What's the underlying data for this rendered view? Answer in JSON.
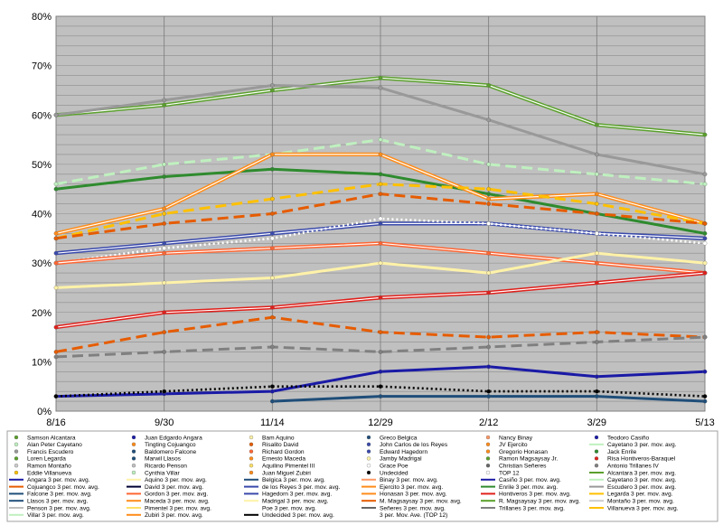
{
  "chart_data": {
    "type": "line",
    "title": "",
    "xlabel": "",
    "ylabel": "",
    "x_ticks": [
      "8/16",
      "9/30",
      "11/14",
      "12/29",
      "2/12",
      "3/29",
      "5/13"
    ],
    "y_ticks": [
      "0%",
      "10%",
      "20%",
      "30%",
      "40%",
      "50%",
      "60%",
      "70%",
      "80%"
    ],
    "ylim": [
      0,
      80
    ],
    "grid": "on",
    "legend_position": "bottom",
    "x_points": [
      "8/16",
      "9/30",
      "11/14",
      "12/29",
      "2/12",
      "3/29",
      "5/13"
    ],
    "series": [
      {
        "name": "Alcantara 3 per. mov. avg.",
        "color": "#5aa02c",
        "style": "double",
        "values": [
          60,
          62,
          65,
          67.5,
          66,
          58,
          56
        ]
      },
      {
        "name": "Escudero 3 per. mov. avg.",
        "color": "#999999",
        "style": "solid",
        "values": [
          60,
          63,
          66,
          65.5,
          59,
          52,
          48
        ]
      },
      {
        "name": "Villar 3 per. mov. avg.",
        "color": "#bff0bf",
        "style": "dashed",
        "values": [
          46,
          50,
          52,
          55,
          50,
          48,
          46
        ]
      },
      {
        "name": "Enrile 3 per. mov. avg.",
        "color": "#2e8b2e",
        "style": "solid",
        "values": [
          45,
          47.5,
          49,
          48,
          44,
          40,
          36
        ]
      },
      {
        "name": "Zubiri 3 per. mov. avg.",
        "color": "#ff8c1a",
        "style": "double",
        "values": [
          36,
          41,
          52,
          52,
          43,
          44,
          38
        ]
      },
      {
        "name": "Legarda 3 per. mov. avg.",
        "color": "#ffc000",
        "style": "dashed",
        "values": [
          35,
          40,
          43,
          46,
          45,
          42,
          38
        ]
      },
      {
        "name": "de los Reyes 3 per. mov. avg.",
        "color": "#3949ab",
        "style": "double",
        "values": [
          32,
          34,
          36,
          38,
          38,
          36,
          35
        ]
      },
      {
        "name": "Cojuangco 3 per. mov. avg.",
        "color": "#e65c00",
        "style": "dashed",
        "values": [
          35,
          38,
          40,
          44,
          42,
          40,
          38
        ]
      },
      {
        "name": "Poe 3 per. mov. avg.",
        "color": "#ffffff",
        "style": "dotted",
        "values": [
          30,
          33,
          35,
          39,
          38,
          36,
          34
        ]
      },
      {
        "name": "Gordon 3 per. mov. avg.",
        "color": "#ff6633",
        "style": "double",
        "values": [
          30,
          32,
          33,
          34,
          32,
          30,
          28
        ]
      },
      {
        "name": "Madrigal 3 per. mov. avg.",
        "color": "#fff2a8",
        "style": "solid",
        "values": [
          25,
          26,
          27,
          30,
          28,
          32,
          30
        ]
      },
      {
        "name": "Hontiveros 3 per. mov. avg.",
        "color": "#e0201b",
        "style": "double",
        "values": [
          17,
          20,
          21,
          23,
          24,
          26,
          28
        ]
      },
      {
        "name": "Magsaysay 3 per. mov. avg.",
        "color": "#e65c00",
        "style": "dashed",
        "values": [
          12,
          16,
          19,
          16,
          15,
          16,
          15
        ]
      },
      {
        "name": "Trillanes 3 per. mov. avg.",
        "color": "#808080",
        "style": "dashed",
        "values": [
          11,
          12,
          13,
          12,
          13,
          14,
          15
        ]
      },
      {
        "name": "Casiño 3 per. mov. avg.",
        "color": "#1a1aa6",
        "style": "solid",
        "values": [
          3,
          3.5,
          4,
          8,
          9,
          7,
          8
        ]
      },
      {
        "name": "Undecided 3 per. mov. avg.",
        "color": "#000000",
        "style": "dotted",
        "values": [
          3,
          4,
          5,
          5,
          4,
          4,
          3
        ]
      },
      {
        "name": "Llasos 3 per. mov. avg.",
        "color": "#1f4e79",
        "style": "solid",
        "values": [
          null,
          null,
          2,
          3,
          3,
          3,
          2
        ]
      }
    ],
    "legend_entries": [
      [
        "Samson Alcantara",
        "Juan Edgardo Angara",
        "Bam Aquino",
        "Greco Belgica",
        "Nancy Binay",
        "Teodoro Casiño"
      ],
      [
        "Alan Peter Cayetano",
        "Tingting Cojuangco",
        "Risalito David",
        "John Carlos de los Reyes",
        "JV Ejercito",
        "Cayetano 3 per. mov. avg."
      ],
      [
        "Francis Escudero",
        "Baldomero Falcone",
        "Richard Gordon",
        "Edward Hagedorn",
        "Gregorio Honasan",
        "Jack Enrile"
      ],
      [
        "Loren Legarda",
        "Marwil Llasos",
        "Ernesto Maceda",
        "Jamby Madrigal",
        "Ramon Magsaysay Jr.",
        "Risa Hontiveros-Baraquel"
      ],
      [
        "Ramon Montaño",
        "Ricardo Penson",
        "Aquilino Pimentel III",
        "Grace Poe",
        "Christian Señeres",
        "Antonio Trillanes IV"
      ],
      [
        "Eddie Villanueva",
        "Cynthia Villar",
        "Juan Miguel Zubiri",
        "Undecided",
        "TOP 12",
        "Alcantara 3 per. mov. avg."
      ],
      [
        "Angara 3 per. mov. avg.",
        "Aquino 3 per. mov. avg.",
        "Belgica 3 per. mov. avg.",
        "Binay 3 per. mov. avg.",
        "Casiño 3 per. mov. avg.",
        "Cayetano 3 per. mov. avg."
      ],
      [
        "Cojuangco 3 per. mov. avg.",
        "David 3 per. mov. avg.",
        "de los Reyes 3 per. mov. avg.",
        "Ejercito 3 per. mov. avg.",
        "Enrile 3 per. mov. avg.",
        "Escudero 3 per. mov. avg."
      ],
      [
        "Falcone 3 per. mov. avg.",
        "Gordon 3 per. mov. avg.",
        "Hagedorn 3 per. mov. avg.",
        "Honasan 3 per. mov. avg.",
        "Hontiveros 3 per. mov. avg.",
        "Legarda 3 per. mov. avg."
      ],
      [
        "Llasos 3 per. mov. avg.",
        "Maceda 3 per. mov. avg.",
        "Madrigal 3 per. mov. avg.",
        "M. Magsaysay 3 per. mov. avg.",
        "R. Magsaysay 3 per. mov. avg.",
        "Montaño 3 per. mov. avg."
      ],
      [
        "Penson 3 per. mov. avg.",
        "Pimentel 3 per. mov. avg.",
        "Poe 3 per. mov. avg.",
        "Señeres 3 per. mov. avg.",
        "Trillanes 3 per. mov. avg.",
        "Villanueva 3 per. mov. avg."
      ],
      [
        "Villar 3 per. mov. avg.",
        "Zubiri 3 per. mov. avg.",
        "Undecided 3 per. mov. avg.",
        "3 per. Mov. Ave. (TOP 12)",
        "",
        ""
      ]
    ],
    "legend_colors": [
      [
        "#5aa02c",
        "#1a1aa6",
        "#fff2a8",
        "#1f4e79",
        "#ff9966",
        "#1a1aa6"
      ],
      [
        "#bff0bf",
        "#ff8c1a",
        "#e65c00",
        "#3949ab",
        "#ff8c1a",
        "#bff0bf"
      ],
      [
        "#999999",
        "#1f4e79",
        "#ff6633",
        "#3949ab",
        "#ff8c1a",
        "#2e8b2e"
      ],
      [
        "#5aa02c",
        "#1f4e79",
        "#ff8c1a",
        "#fff2a8",
        "#5aa02c",
        "#e0201b"
      ],
      [
        "#cccccc",
        "#bfbfbf",
        "#ffe066",
        "#ffffff",
        "#666666",
        "#808080"
      ],
      [
        "#ffc000",
        "#bff0bf",
        "#ff8c1a",
        "#000000",
        "#ffffff",
        "#5aa02c"
      ],
      [
        "#1a1aa6",
        "#fff2a8",
        "#1f4e79",
        "#ff9966",
        "#1a1aa6",
        "#bff0bf"
      ],
      [
        "#e65c00",
        "#000033",
        "#3949ab",
        "#ff8c1a",
        "#2e8b2e",
        "#999999"
      ],
      [
        "#1f4e79",
        "#ff6633",
        "#3949ab",
        "#ff8c1a",
        "#e0201b",
        "#ffc000"
      ],
      [
        "#1f4e79",
        "#ff8c1a",
        "#fff2a8",
        "#e65c00",
        "#5aa02c",
        "#cccccc"
      ],
      [
        "#bfbfbf",
        "#ffe066",
        "#ffffff",
        "#666666",
        "#808080",
        "#ffc000"
      ],
      [
        "#bff0bf",
        "#ff8c1a",
        "#000000",
        "#ffffff",
        "",
        ""
      ]
    ]
  }
}
